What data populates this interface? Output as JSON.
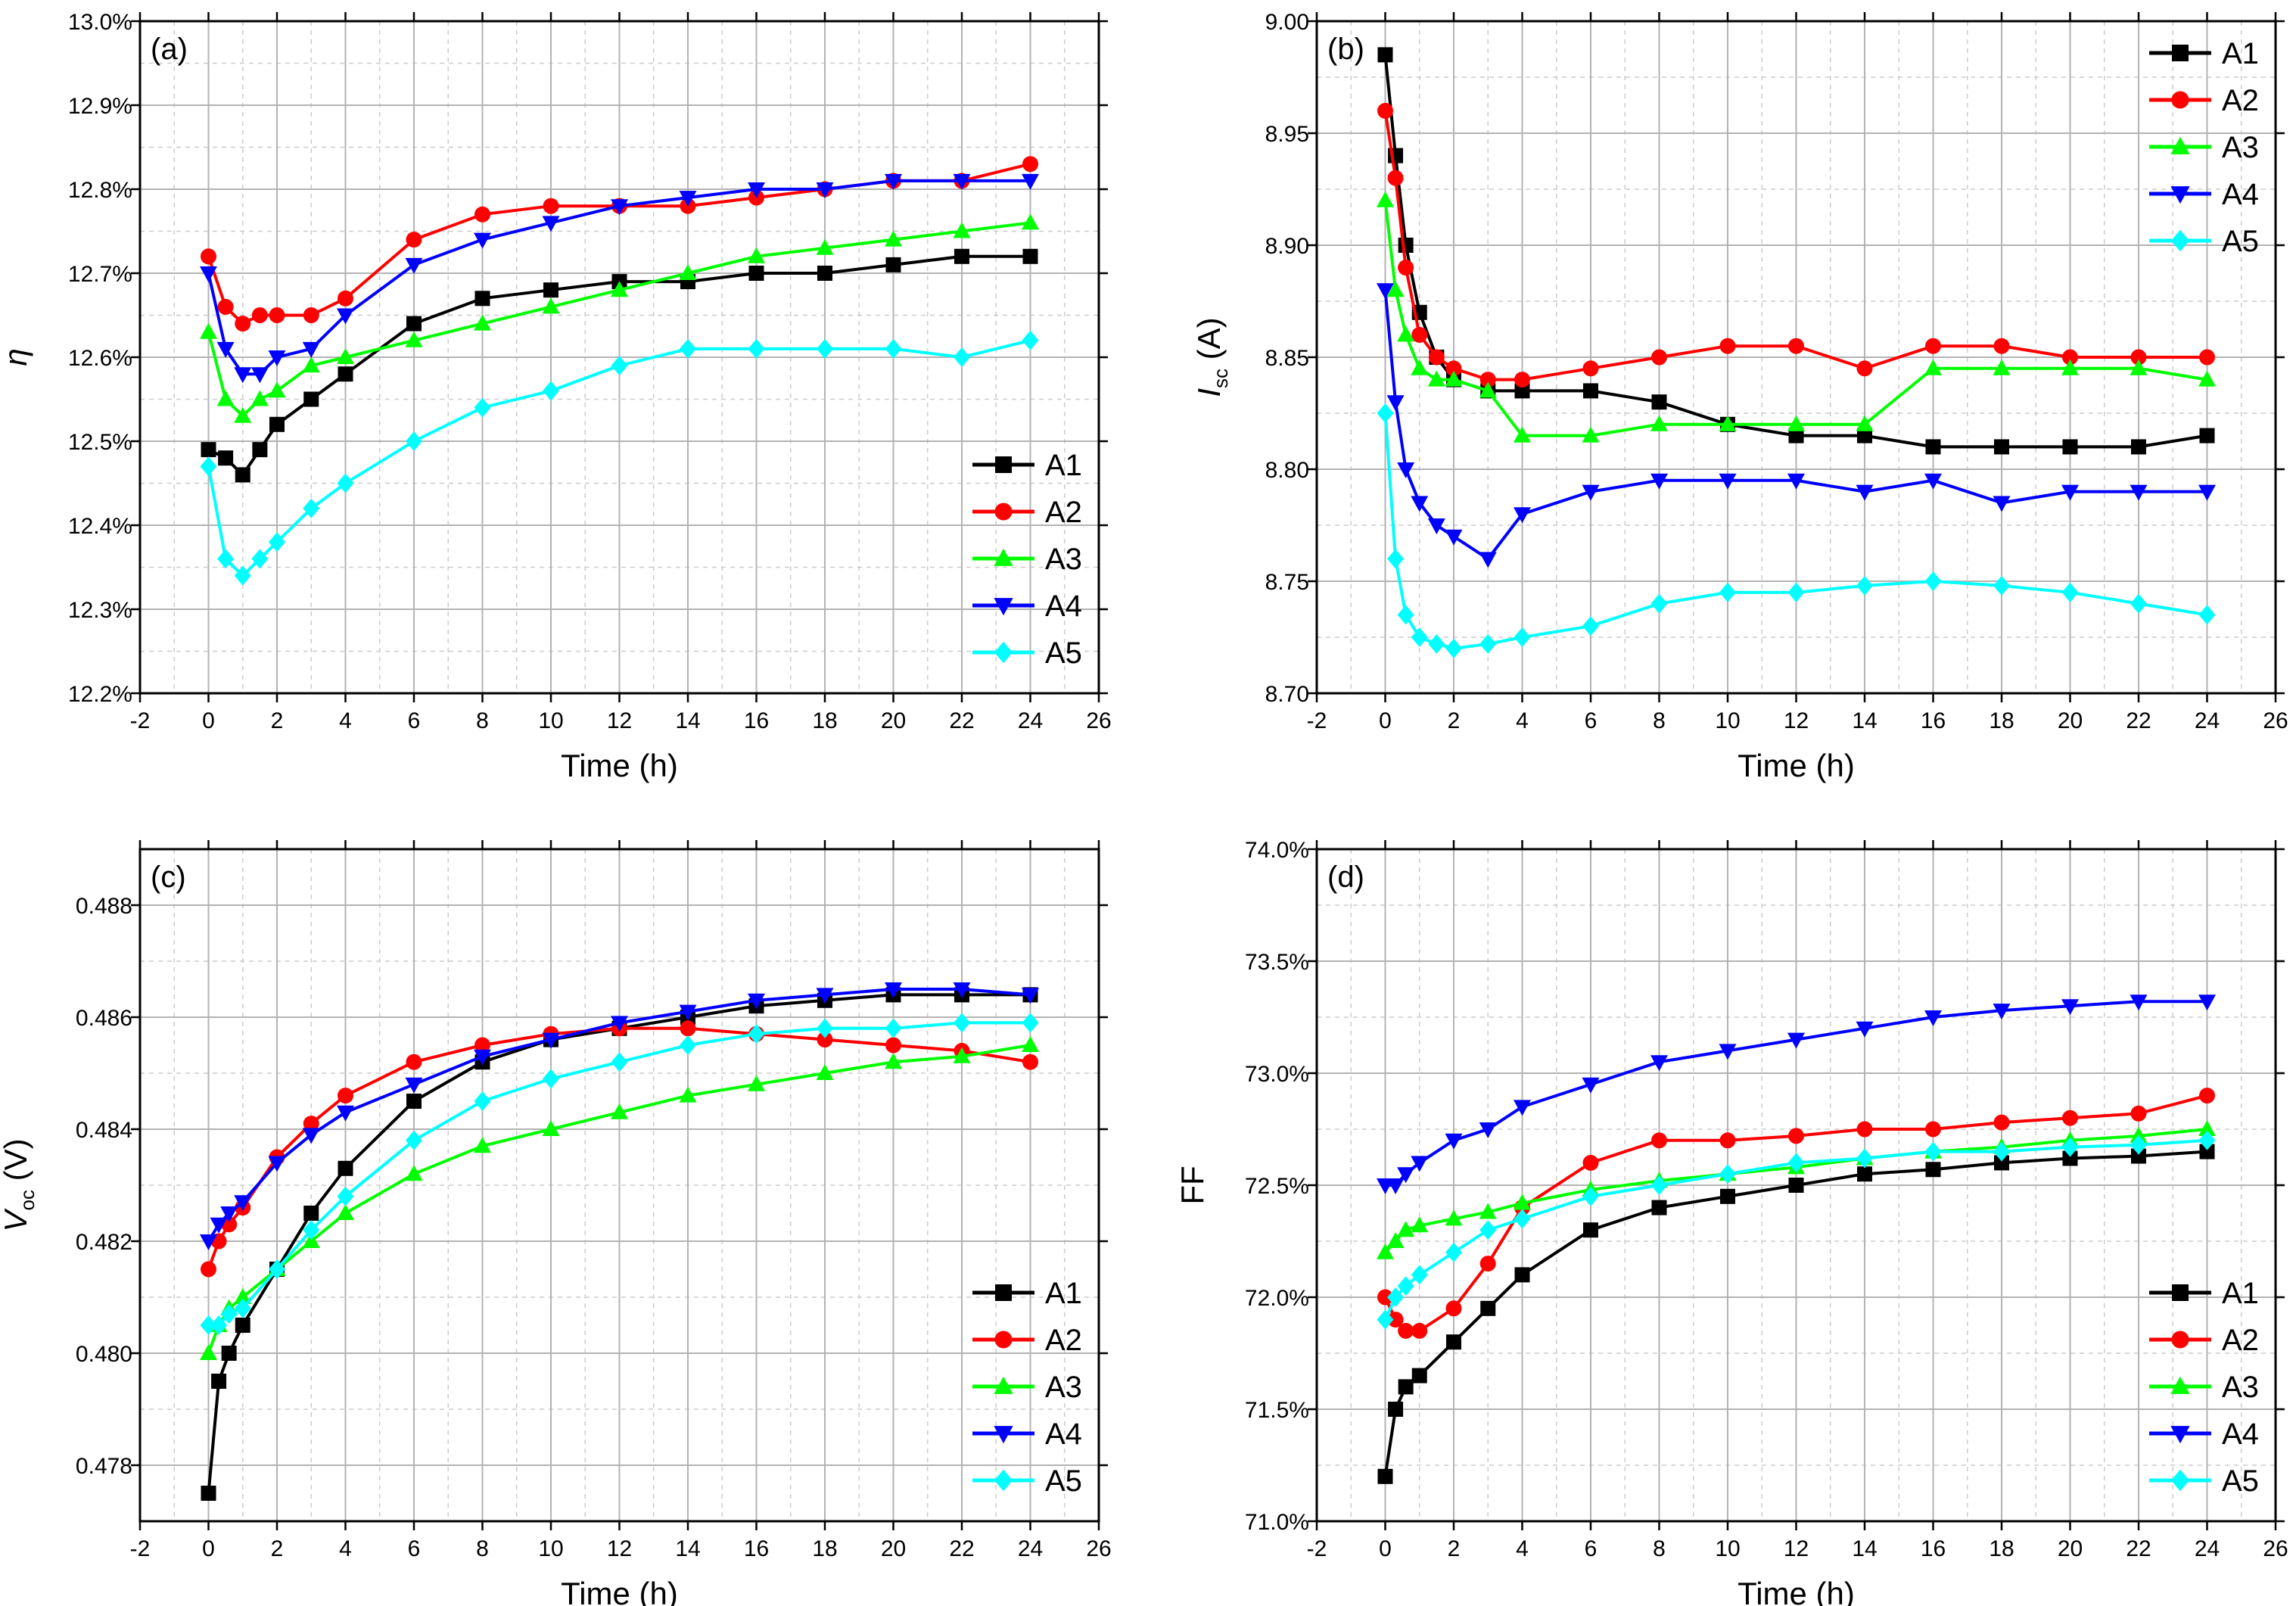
{
  "figure": {
    "series_styles": [
      {
        "name": "A1",
        "color": "#000000",
        "marker": "square"
      },
      {
        "name": "A2",
        "color": "#ff0000",
        "marker": "circle"
      },
      {
        "name": "A3",
        "color": "#00ff00",
        "marker": "triangle-up"
      },
      {
        "name": "A4",
        "color": "#0000ff",
        "marker": "triangle-down"
      },
      {
        "name": "A5",
        "color": "#00ffff",
        "marker": "diamond"
      }
    ]
  },
  "chart_data": [
    {
      "type": "line",
      "panel_label": "(a)",
      "title": "",
      "xlabel": "Time (h)",
      "ylabel": "η",
      "ylabel_sub": "",
      "xlim": [
        -2,
        26
      ],
      "ylim": [
        12.2,
        13.0
      ],
      "x_ticks": [
        -2,
        0,
        2,
        4,
        6,
        8,
        10,
        12,
        14,
        16,
        18,
        20,
        22,
        24,
        26
      ],
      "y_ticks": [
        "12.2%",
        "12.3%",
        "12.4%",
        "12.5%",
        "12.6%",
        "12.7%",
        "12.8%",
        "12.9%",
        "13.0%"
      ],
      "y_tick_values": [
        12.2,
        12.3,
        12.4,
        12.5,
        12.6,
        12.7,
        12.8,
        12.9,
        13.0
      ],
      "legend": [
        "A1",
        "A2",
        "A3",
        "A4",
        "A5"
      ],
      "legend_position": "bottom-right",
      "x": [
        0,
        0.5,
        1,
        1.5,
        2,
        3,
        4,
        6,
        8,
        10,
        12,
        14,
        16,
        18,
        20,
        22,
        24
      ],
      "series": [
        {
          "name": "A1",
          "values": [
            12.49,
            12.48,
            12.46,
            12.49,
            12.52,
            12.55,
            12.58,
            12.64,
            12.67,
            12.68,
            12.69,
            12.69,
            12.7,
            12.7,
            12.71,
            12.72,
            12.72
          ]
        },
        {
          "name": "A2",
          "values": [
            12.72,
            12.66,
            12.64,
            12.65,
            12.65,
            12.65,
            12.67,
            12.74,
            12.77,
            12.78,
            12.78,
            12.78,
            12.79,
            12.8,
            12.81,
            12.81,
            12.83
          ]
        },
        {
          "name": "A3",
          "values": [
            12.63,
            12.55,
            12.53,
            12.55,
            12.56,
            12.59,
            12.6,
            12.62,
            12.64,
            12.66,
            12.68,
            12.7,
            12.72,
            12.73,
            12.74,
            12.75,
            12.76
          ]
        },
        {
          "name": "A4",
          "values": [
            12.7,
            12.61,
            12.58,
            12.58,
            12.6,
            12.61,
            12.65,
            12.71,
            12.74,
            12.76,
            12.78,
            12.79,
            12.8,
            12.8,
            12.81,
            12.81,
            12.81
          ]
        },
        {
          "name": "A5",
          "values": [
            12.47,
            12.36,
            12.34,
            12.36,
            12.38,
            12.42,
            12.45,
            12.5,
            12.54,
            12.56,
            12.59,
            12.61,
            12.61,
            12.61,
            12.61,
            12.6,
            12.62
          ]
        }
      ]
    },
    {
      "type": "line",
      "panel_label": "(b)",
      "title": "",
      "xlabel": "Time (h)",
      "ylabel": "I",
      "ylabel_sub": "sc",
      "ylabel_suffix": " (A)",
      "xlim": [
        -2,
        26
      ],
      "ylim": [
        8.7,
        9.0
      ],
      "x_ticks": [
        -2,
        0,
        2,
        4,
        6,
        8,
        10,
        12,
        14,
        16,
        18,
        20,
        22,
        24,
        26
      ],
      "y_ticks": [
        "8.70",
        "8.75",
        "8.80",
        "8.85",
        "8.90",
        "8.95",
        "9.00"
      ],
      "y_tick_values": [
        8.7,
        8.75,
        8.8,
        8.85,
        8.9,
        8.95,
        9.0
      ],
      "legend": [
        "A1",
        "A2",
        "A3",
        "A4",
        "A5"
      ],
      "legend_position": "top-right",
      "x": [
        0,
        0.3,
        0.6,
        1,
        1.5,
        2,
        3,
        4,
        6,
        8,
        10,
        12,
        14,
        16,
        18,
        20,
        22,
        24
      ],
      "series": [
        {
          "name": "A1",
          "values": [
            8.985,
            8.94,
            8.9,
            8.87,
            8.85,
            8.84,
            8.835,
            8.835,
            8.835,
            8.83,
            8.82,
            8.815,
            8.815,
            8.81,
            8.81,
            8.81,
            8.81,
            8.815
          ]
        },
        {
          "name": "A2",
          "values": [
            8.96,
            8.93,
            8.89,
            8.86,
            8.85,
            8.845,
            8.84,
            8.84,
            8.845,
            8.85,
            8.855,
            8.855,
            8.845,
            8.855,
            8.855,
            8.85,
            8.85,
            8.85
          ]
        },
        {
          "name": "A3",
          "values": [
            8.92,
            8.88,
            8.86,
            8.845,
            8.84,
            8.84,
            8.835,
            8.815,
            8.815,
            8.82,
            8.82,
            8.82,
            8.82,
            8.845,
            8.845,
            8.845,
            8.845,
            8.84
          ]
        },
        {
          "name": "A4",
          "values": [
            8.88,
            8.83,
            8.8,
            8.785,
            8.775,
            8.77,
            8.76,
            8.78,
            8.79,
            8.795,
            8.795,
            8.795,
            8.79,
            8.795,
            8.785,
            8.79,
            8.79,
            8.79
          ]
        },
        {
          "name": "A5",
          "values": [
            8.825,
            8.76,
            8.735,
            8.725,
            8.722,
            8.72,
            8.722,
            8.725,
            8.73,
            8.74,
            8.745,
            8.745,
            8.748,
            8.75,
            8.748,
            8.745,
            8.74,
            8.735
          ]
        }
      ]
    },
    {
      "type": "line",
      "panel_label": "(c)",
      "title": "",
      "xlabel": "Time (h)",
      "ylabel": "V",
      "ylabel_sub": "oc",
      "ylabel_suffix": " (V)",
      "xlim": [
        -2,
        26
      ],
      "ylim": [
        0.477,
        0.489
      ],
      "x_ticks": [
        -2,
        0,
        2,
        4,
        6,
        8,
        10,
        12,
        14,
        16,
        18,
        20,
        22,
        24,
        26
      ],
      "y_ticks": [
        "0.478",
        "0.480",
        "0.482",
        "0.484",
        "0.486",
        "0.488"
      ],
      "y_tick_values": [
        0.478,
        0.48,
        0.482,
        0.484,
        0.486,
        0.488
      ],
      "legend": [
        "A1",
        "A2",
        "A3",
        "A4",
        "A5"
      ],
      "legend_position": "bottom-right",
      "x": [
        0,
        0.3,
        0.6,
        1,
        2,
        3,
        4,
        6,
        8,
        10,
        12,
        14,
        16,
        18,
        20,
        22,
        24
      ],
      "series": [
        {
          "name": "A1",
          "values": [
            0.4775,
            0.4795,
            0.48,
            0.4805,
            0.4815,
            0.4825,
            0.4833,
            0.4845,
            0.4852,
            0.4856,
            0.4858,
            0.486,
            0.4862,
            0.4863,
            0.4864,
            0.4864,
            0.4864
          ]
        },
        {
          "name": "A2",
          "values": [
            0.4815,
            0.482,
            0.4823,
            0.4826,
            0.4835,
            0.4841,
            0.4846,
            0.4852,
            0.4855,
            0.4857,
            0.4858,
            0.4858,
            0.4857,
            0.4856,
            0.4855,
            0.4854,
            0.4852
          ]
        },
        {
          "name": "A3",
          "values": [
            0.48,
            0.4805,
            0.4808,
            0.481,
            0.4815,
            0.482,
            0.4825,
            0.4832,
            0.4837,
            0.484,
            0.4843,
            0.4846,
            0.4848,
            0.485,
            0.4852,
            0.4853,
            0.4855
          ]
        },
        {
          "name": "A4",
          "values": [
            0.482,
            0.4823,
            0.4825,
            0.4827,
            0.4834,
            0.4839,
            0.4843,
            0.4848,
            0.4853,
            0.4856,
            0.4859,
            0.4861,
            0.4863,
            0.4864,
            0.4865,
            0.4865,
            0.4864
          ]
        },
        {
          "name": "A5",
          "values": [
            0.4805,
            0.4805,
            0.4807,
            0.4808,
            0.4815,
            0.4822,
            0.4828,
            0.4838,
            0.4845,
            0.4849,
            0.4852,
            0.4855,
            0.4857,
            0.4858,
            0.4858,
            0.4859,
            0.4859
          ]
        }
      ]
    },
    {
      "type": "line",
      "panel_label": "(d)",
      "title": "",
      "xlabel": "Time (h)",
      "ylabel": "FF",
      "ylabel_sub": "",
      "xlim": [
        -2,
        26
      ],
      "ylim": [
        71.0,
        74.0
      ],
      "x_ticks": [
        -2,
        0,
        2,
        4,
        6,
        8,
        10,
        12,
        14,
        16,
        18,
        20,
        22,
        24,
        26
      ],
      "y_ticks": [
        "71.0%",
        "71.5%",
        "72.0%",
        "72.5%",
        "73.0%",
        "73.5%",
        "74.0%"
      ],
      "y_tick_values": [
        71.0,
        71.5,
        72.0,
        72.5,
        73.0,
        73.5,
        74.0
      ],
      "legend": [
        "A1",
        "A2",
        "A3",
        "A4",
        "A5"
      ],
      "legend_position": "bottom-right",
      "x": [
        0,
        0.3,
        0.6,
        1,
        2,
        3,
        4,
        6,
        8,
        10,
        12,
        14,
        16,
        18,
        20,
        22,
        24
      ],
      "series": [
        {
          "name": "A1",
          "values": [
            71.2,
            71.5,
            71.6,
            71.65,
            71.8,
            71.95,
            72.1,
            72.3,
            72.4,
            72.45,
            72.5,
            72.55,
            72.57,
            72.6,
            72.62,
            72.63,
            72.65
          ]
        },
        {
          "name": "A2",
          "values": [
            72.0,
            71.9,
            71.85,
            71.85,
            71.95,
            72.15,
            72.4,
            72.6,
            72.7,
            72.7,
            72.72,
            72.75,
            72.75,
            72.78,
            72.8,
            72.82,
            72.9
          ]
        },
        {
          "name": "A3",
          "values": [
            72.2,
            72.25,
            72.3,
            72.32,
            72.35,
            72.38,
            72.42,
            72.48,
            72.52,
            72.55,
            72.58,
            72.62,
            72.65,
            72.67,
            72.7,
            72.72,
            72.75
          ]
        },
        {
          "name": "A4",
          "values": [
            72.5,
            72.5,
            72.55,
            72.6,
            72.7,
            72.75,
            72.85,
            72.95,
            73.05,
            73.1,
            73.15,
            73.2,
            73.25,
            73.28,
            73.3,
            73.32,
            73.32
          ]
        },
        {
          "name": "A5",
          "values": [
            71.9,
            72.0,
            72.05,
            72.1,
            72.2,
            72.3,
            72.35,
            72.45,
            72.5,
            72.55,
            72.6,
            72.62,
            72.65,
            72.65,
            72.67,
            72.68,
            72.7
          ]
        }
      ]
    }
  ]
}
